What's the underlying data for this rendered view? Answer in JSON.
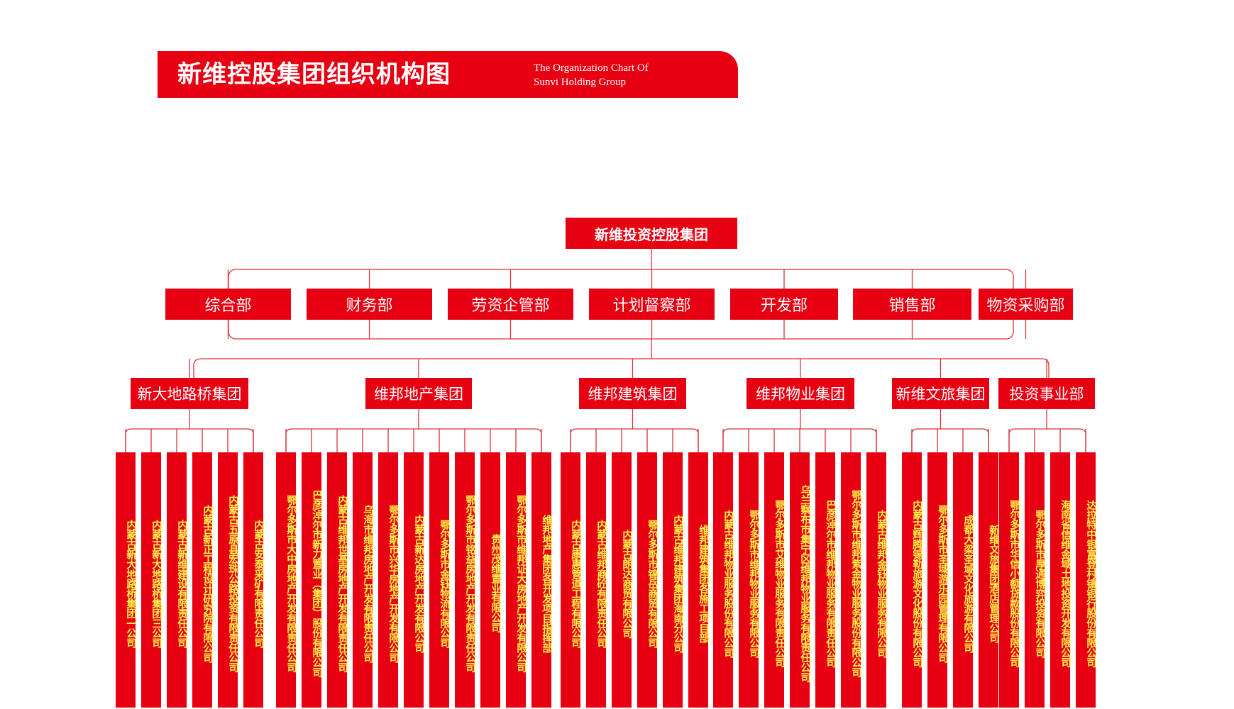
{
  "header": {
    "title": "新维控股集团组织机构图",
    "subtitle_line1": "The Organization Chart Of",
    "subtitle_line2": "Sunvi Holding Group"
  },
  "colors": {
    "brand_red": "#e60012",
    "leaf_text": "#fff34a",
    "line": "#d9323a"
  },
  "org": {
    "root": "新维投资控股集团",
    "departments": [
      "综合部",
      "财务部",
      "劳资企管部",
      "计划督察部",
      "开发部",
      "销售部",
      "物资采购部"
    ],
    "groups": [
      {
        "name": "新大地路桥集团",
        "subsidiaries": [
          "内蒙古新大地路桥集团一公司",
          "内蒙古新大地路桥集团三公司",
          "内蒙古新维建设有限责任公司",
          "内蒙古新正工程设计研究院有限公司",
          "内蒙古五原县宏珠公路投资有限责任公司",
          "内蒙古安泰采矿有限责任公司"
        ]
      },
      {
        "name": "维邦地产集团",
        "subsidiaries": [
          "鄂尔多斯市大中房地产开发有限责任公司",
          "巴彦淖尔市新力置业（集团）股份有限公司",
          "内蒙古维邦世基房地产开发有限责任公司",
          "乌海市维邦房地产开发有限责任公司",
          "鄂尔多斯市兴华房地产开发有限公司",
          "内蒙古新达房地产开发有限公司",
          "鄂尔多斯市金钰物流有限公司",
          "鄂尔多斯市铭益房地产开发有限责任公司",
          "贵州茂维置业有限公司",
          "鄂尔多斯市维邦证大房地产开发有限公司",
          "维邦地产集团各开发项目指挥部"
        ]
      },
      {
        "name": "维邦建筑集团",
        "subsidiaries": [
          "内蒙古康惠管道工程有限公司",
          "内蒙古维邦商砼有限责任公司",
          "内蒙古朗达商贸有限公司",
          "鄂尔多斯市锦岳商贸有限公司",
          "内蒙古维邦建筑集团海南分公司",
          "维邦建筑集团各施工项目部"
        ]
      },
      {
        "name": "维邦物业集团",
        "subsidiaries": [
          "内蒙古维邦物业服务股份有限公司",
          "鄂尔多斯市维邦物业服务有限公司",
          "鄂尔多斯市艾维物业服务有限责任公司",
          "乌兰察布市集宁区维邦物业服务有限责任公司",
          "巴彦淖尔市维邦物业服务有限责任公司",
          "鄂尔多斯市维邦紫金物业服务股份有限公司",
          "内蒙古维邦金钰物业服务有限公司"
        ]
      },
      {
        "name": "新维文旅集团",
        "subsidiaries": [
          "内蒙古辉腾锡勒旅游文化股份有限公司",
          "鄂尔多斯市圣域游乐园管理有限公司",
          "成都大梁圣域文化旅游有限公司",
          "新维文旅集团酒店管理公司"
        ]
      },
      {
        "name": "投资事业部",
        "subsidiaries": [
          "鄂尔多斯市华信小额贷款股份有限公司",
          "鄂尔多斯市厚通博弈投资有限公司",
          "海南省信维金域土地投资开发有限公司",
          "达拉特中银富登村镇银行股份有限公司"
        ]
      }
    ]
  }
}
